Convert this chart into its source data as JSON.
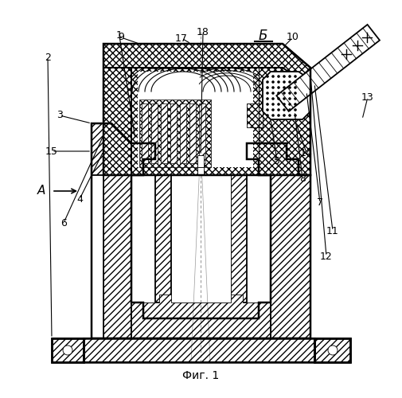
{
  "bg_color": "#ffffff",
  "line_color": "#000000",
  "fig_label": "Фиг. 1",
  "section_label": "Б",
  "arrow_label": "А",
  "lw_main": 1.3,
  "lw_thin": 0.6,
  "lw_thick": 1.8
}
